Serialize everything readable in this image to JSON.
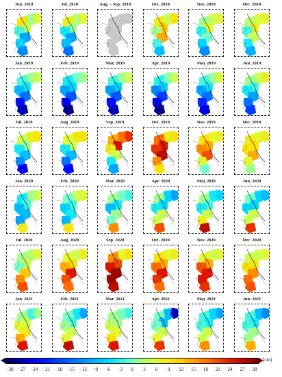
{
  "panels": [
    {
      "title": "Jun. 2018",
      "v": [
        2,
        6,
        10,
        4,
        -2,
        -10,
        -6,
        -12
      ]
    },
    {
      "title": "Jul. 2018",
      "v": [
        3,
        6,
        8,
        2,
        -4,
        -10,
        -8,
        -14
      ]
    },
    {
      "title": "Aug. – Sep. 2018",
      "v": [
        null,
        null,
        null,
        null,
        null,
        null,
        null,
        null
      ]
    },
    {
      "title": "Oct. 2018",
      "v": [
        4,
        10,
        8,
        12,
        2,
        14,
        -2,
        -8
      ]
    },
    {
      "title": "Nov. 2018",
      "v": [
        4,
        6,
        2,
        6,
        -3,
        0,
        -6,
        -12
      ]
    },
    {
      "title": "Dec. 2018",
      "v": [
        5,
        7,
        3,
        8,
        -2,
        4,
        -4,
        -9
      ]
    },
    {
      "title": "Jan. 2019",
      "v": [
        2,
        4,
        -2,
        -4,
        -8,
        -14,
        -22,
        -26
      ]
    },
    {
      "title": "Feb. 2019",
      "v": [
        0,
        2,
        -4,
        -6,
        -10,
        -16,
        -24,
        -28
      ]
    },
    {
      "title": "Mar. 2019",
      "v": [
        2,
        4,
        -2,
        -6,
        -10,
        -16,
        -22,
        -26
      ]
    },
    {
      "title": "Apr. 2019",
      "v": [
        1,
        4,
        -3,
        -6,
        -12,
        -18,
        -24,
        -28
      ]
    },
    {
      "title": "May 2019",
      "v": [
        2,
        5,
        -2,
        -4,
        -10,
        -14,
        -20,
        -24
      ]
    },
    {
      "title": "Jun. 2019",
      "v": [
        4,
        8,
        2,
        -2,
        -4,
        -10,
        -14,
        -18
      ]
    },
    {
      "title": "Jul. 2019",
      "v": [
        8,
        10,
        4,
        2,
        -4,
        -8,
        -12,
        -24
      ]
    },
    {
      "title": "Aug. 2019",
      "v": [
        9,
        10,
        5,
        4,
        -4,
        -8,
        -14,
        -22
      ]
    },
    {
      "title": "Sep. 2019",
      "v": [
        18,
        22,
        14,
        24,
        8,
        4,
        -4,
        -10
      ]
    },
    {
      "title": "Oct. 2019",
      "v": [
        8,
        10,
        18,
        24,
        22,
        26,
        16,
        10
      ]
    },
    {
      "title": "Nov. 2019",
      "v": [
        6,
        8,
        10,
        14,
        16,
        20,
        6,
        0
      ]
    },
    {
      "title": "Dec. 2019",
      "v": [
        6,
        8,
        8,
        10,
        10,
        14,
        6,
        2
      ]
    },
    {
      "title": "Jan. 2020",
      "v": [
        2,
        4,
        -4,
        -2,
        -8,
        -8,
        -10,
        8
      ]
    },
    {
      "title": "Feb. 2020",
      "v": [
        4,
        6,
        0,
        -2,
        -6,
        -4,
        -8,
        10
      ]
    },
    {
      "title": "Mar. 2020",
      "v": [
        0,
        -2,
        2,
        -4,
        -8,
        2,
        0,
        16
      ]
    },
    {
      "title": "Apr. 2020",
      "v": [
        -6,
        -10,
        2,
        -6,
        -4,
        4,
        4,
        20
      ]
    },
    {
      "title": "May 2020",
      "v": [
        -4,
        -6,
        2,
        -2,
        -4,
        4,
        8,
        26
      ]
    },
    {
      "title": "Jun. 2020",
      "v": [
        -6,
        -8,
        0,
        -6,
        -6,
        4,
        4,
        22
      ]
    },
    {
      "title": "Jul. 2020",
      "v": [
        3,
        6,
        2,
        4,
        0,
        12,
        16,
        20
      ]
    },
    {
      "title": "Aug. 2020",
      "v": [
        4,
        8,
        6,
        10,
        14,
        24,
        20,
        18
      ]
    },
    {
      "title": "Sep. 2020",
      "v": [
        6,
        10,
        16,
        20,
        24,
        28,
        28,
        26
      ]
    },
    {
      "title": "Oct. 2020",
      "v": [
        6,
        8,
        10,
        14,
        18,
        24,
        22,
        18
      ]
    },
    {
      "title": "Nov. 2020",
      "v": [
        4,
        6,
        6,
        14,
        20,
        24,
        24,
        22
      ]
    },
    {
      "title": "Dec. 2020",
      "v": [
        4,
        6,
        4,
        8,
        10,
        16,
        18,
        20
      ]
    },
    {
      "title": "Jan. 2021",
      "v": [
        -2,
        2,
        2,
        4,
        6,
        8,
        14,
        24
      ]
    },
    {
      "title": "Feb. 2021",
      "v": [
        -4,
        -10,
        0,
        -2,
        2,
        4,
        6,
        26
      ]
    },
    {
      "title": "Mar. 2021",
      "v": [
        0,
        -2,
        2,
        2,
        4,
        6,
        10,
        24
      ]
    },
    {
      "title": "Apr. 2021",
      "v": [
        -8,
        -26,
        0,
        -8,
        0,
        4,
        6,
        22
      ]
    },
    {
      "title": "May 2021",
      "v": [
        -6,
        -10,
        -2,
        -4,
        -2,
        4,
        4,
        16
      ]
    },
    {
      "title": "Jun. 2021",
      "v": [
        -8,
        -12,
        -2,
        -4,
        -2,
        2,
        2,
        14
      ]
    }
  ],
  "colorbar": {
    "ticks": [
      "−30",
      "−27",
      "−24",
      "−21",
      "−18",
      "−15",
      "−12",
      "−9",
      "−6",
      "−3",
      "0",
      "3",
      "6",
      "9",
      "12",
      "15",
      "18",
      "21",
      "24",
      "27",
      "30"
    ],
    "unit": "[cm]",
    "min": -30,
    "max": 30
  }
}
